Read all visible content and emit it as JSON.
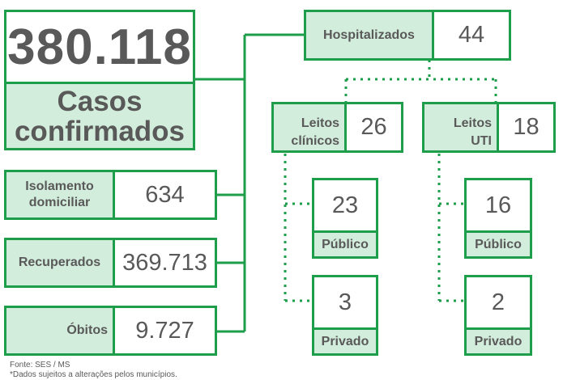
{
  "main": {
    "value": "380.118",
    "label_line1": "Casos",
    "label_line2": "confirmados"
  },
  "isolamento": {
    "label_line1": "Isolamento",
    "label_line2": "domiciliar",
    "value": "634"
  },
  "recuperados": {
    "label": "Recuperados",
    "value": "369.713"
  },
  "obitos": {
    "label": "Óbitos",
    "value": "9.727"
  },
  "hospitalizados": {
    "label": "Hospitalizados",
    "value": "44"
  },
  "leitos_clinicos": {
    "label_line1": "Leitos",
    "label_line2": "clínicos",
    "value": "26",
    "publico": {
      "value": "23",
      "label": "Público"
    },
    "privado": {
      "value": "3",
      "label": "Privado"
    }
  },
  "leitos_uti": {
    "label_line1": "Leitos",
    "label_line2": "UTI",
    "value": "18",
    "publico": {
      "value": "16",
      "label": "Público"
    },
    "privado": {
      "value": "2",
      "label": "Privado"
    }
  },
  "footer": {
    "source": "Fonte: SES / MS",
    "note": "*Dados sujeitos a alterações pelos municípios."
  },
  "colors": {
    "border": "#1e9e4a",
    "label_fill": "#d3eddc",
    "text": "#595959"
  }
}
